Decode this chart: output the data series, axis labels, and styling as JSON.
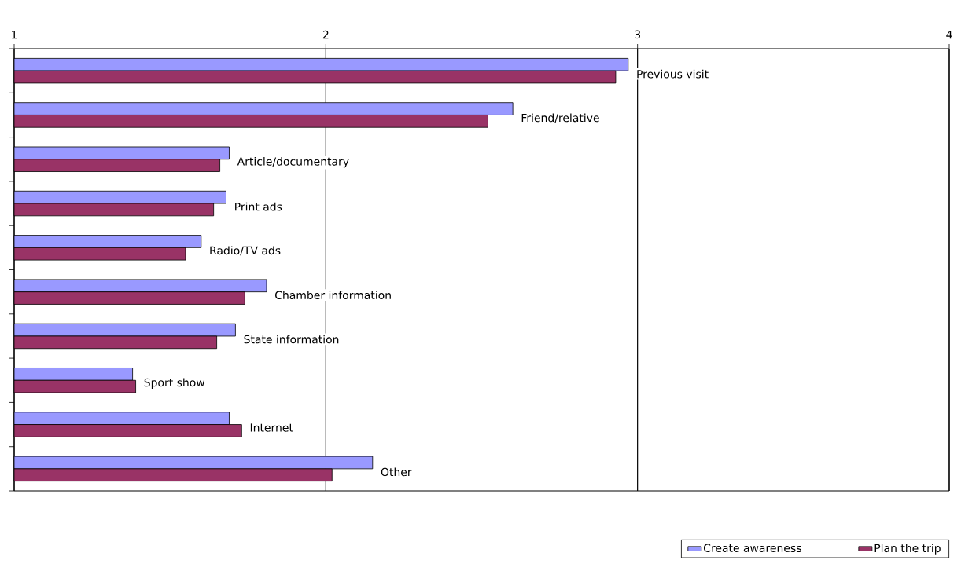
{
  "chart_data": {
    "type": "bar",
    "orientation": "horizontal",
    "categories": [
      "Previous visit",
      "Friend/relative",
      "Article/documentary",
      "Print ads",
      "Radio/TV ads",
      "Chamber information",
      "State information",
      "Sport show",
      "Internet",
      "Other"
    ],
    "series": [
      {
        "name": "Create awareness",
        "color": "#9999ff",
        "values": [
          2.97,
          2.6,
          1.69,
          1.68,
          1.6,
          1.81,
          1.71,
          1.38,
          1.69,
          2.15
        ]
      },
      {
        "name": "Plan the trip",
        "color": "#993366",
        "values": [
          2.93,
          2.52,
          1.66,
          1.64,
          1.55,
          1.74,
          1.65,
          1.39,
          1.73,
          2.02
        ]
      }
    ],
    "xlim": [
      1,
      4
    ],
    "xticks": [
      1,
      2,
      3,
      4
    ],
    "grid": "x",
    "legend": "bottom",
    "tick_labels": "x"
  }
}
